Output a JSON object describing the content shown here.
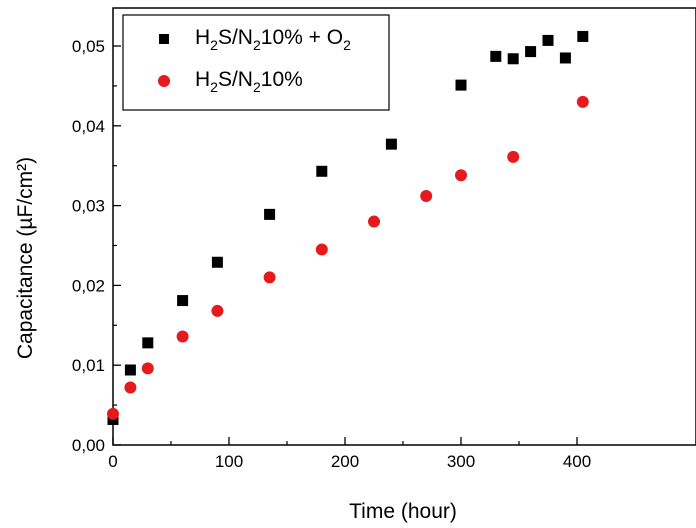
{
  "chart_data": {
    "type": "scatter",
    "xlabel": "Time (hour)",
    "ylabel": "Capacitance (µF/cm²)",
    "xlim": [
      0,
      450
    ],
    "ylim": [
      0,
      0.055
    ],
    "x_ticks": [
      0,
      100,
      200,
      300,
      400
    ],
    "x_tick_labels": [
      "0",
      "100",
      "200",
      "300",
      "400"
    ],
    "y_ticks": [
      0,
      0.01,
      0.02,
      0.03,
      0.04,
      0.05
    ],
    "y_tick_labels": [
      "0,00",
      "0,01",
      "0,02",
      "0,03",
      "0,04",
      "0,05"
    ],
    "legend_position": "top-left",
    "series": [
      {
        "name": "H2S/N210% + O2",
        "legend_parts": [
          {
            "t": "H",
            "sub": false
          },
          {
            "t": "2",
            "sub": true
          },
          {
            "t": "S/N",
            "sub": false
          },
          {
            "t": "2",
            "sub": true
          },
          {
            "t": "10% + O",
            "sub": false
          },
          {
            "t": "2",
            "sub": true
          }
        ],
        "marker": "square",
        "color": "#000000",
        "x": [
          0,
          15,
          30,
          60,
          90,
          135,
          180,
          240,
          300,
          330,
          345,
          360,
          375,
          390,
          405
        ],
        "y": [
          0.0032,
          0.0094,
          0.0128,
          0.0181,
          0.0229,
          0.0289,
          0.0343,
          0.0377,
          0.0451,
          0.0487,
          0.0484,
          0.0493,
          0.0507,
          0.0485,
          0.0512
        ]
      },
      {
        "name": "H2S/N210%",
        "legend_parts": [
          {
            "t": "H",
            "sub": false
          },
          {
            "t": "2",
            "sub": true
          },
          {
            "t": "S/N",
            "sub": false
          },
          {
            "t": "2",
            "sub": true
          },
          {
            "t": "10%",
            "sub": false
          }
        ],
        "marker": "circle",
        "color": "#e41a1c",
        "x": [
          0,
          15,
          30,
          60,
          90,
          135,
          180,
          225,
          270,
          300,
          345,
          405
        ],
        "y": [
          0.0039,
          0.0072,
          0.0096,
          0.0136,
          0.0168,
          0.021,
          0.0245,
          0.028,
          0.0312,
          0.0338,
          0.0361,
          0.043
        ]
      }
    ]
  }
}
